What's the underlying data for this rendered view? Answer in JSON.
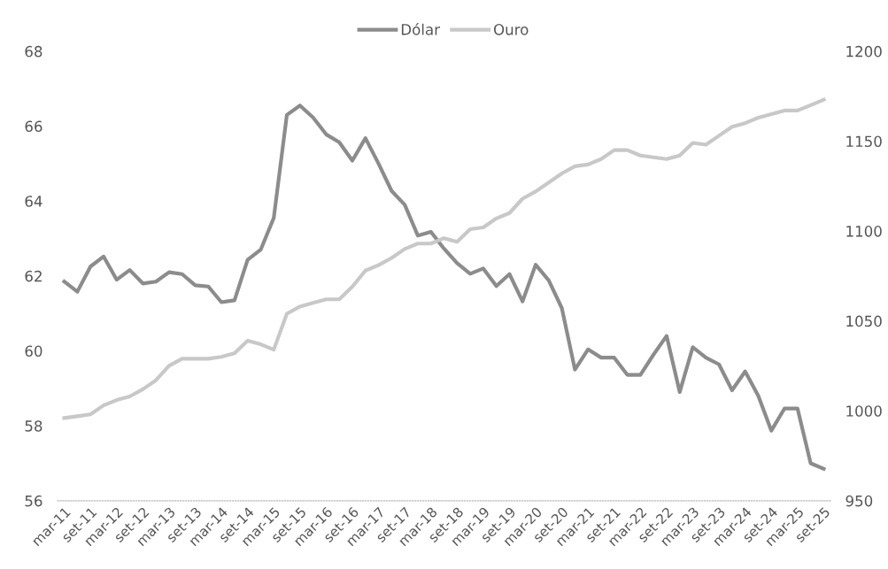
{
  "chart_data": {
    "type": "line",
    "categories": [
      "mar-11",
      null,
      "set-11",
      null,
      "mar-12",
      null,
      "set-12",
      null,
      "mar-13",
      null,
      "set-13",
      null,
      "mar-14",
      null,
      "set-14",
      null,
      "mar-15",
      null,
      "set-15",
      null,
      "mar-16",
      null,
      "set-16",
      null,
      "mar-17",
      null,
      "set-17",
      null,
      "mar-18",
      null,
      "set-18",
      null,
      "mar-19",
      null,
      "set-19",
      null,
      "mar-20",
      null,
      "set-20",
      null,
      "mar-21",
      null,
      "set-21",
      null,
      "mar-22",
      null,
      "set-22",
      null,
      "mar-23",
      null,
      "set-23",
      null,
      "mar-24",
      null,
      "set-24",
      null,
      "mar-25",
      null,
      "set-25"
    ],
    "series": [
      {
        "name": "Dólar",
        "color": "#8c8c8c",
        "values": [
          61.85,
          61.58,
          62.25,
          62.52,
          61.9,
          62.16,
          61.8,
          61.85,
          62.1,
          62.05,
          61.75,
          61.72,
          61.3,
          61.35,
          62.43,
          62.7,
          63.55,
          66.3,
          66.55,
          66.23,
          65.78,
          65.57,
          65.08,
          65.68,
          65.0,
          64.27,
          63.9,
          63.08,
          63.18,
          62.73,
          62.34,
          62.06,
          62.2,
          61.73,
          62.05,
          61.32,
          62.3,
          61.88,
          61.14,
          59.5,
          60.04,
          59.82,
          59.82,
          59.36,
          59.36,
          59.9,
          60.4,
          58.9,
          60.1,
          59.82,
          59.64,
          58.95,
          59.45,
          58.8,
          57.87,
          58.46,
          58.46,
          57.0,
          56.85
        ]
      },
      {
        "name": "Ouro",
        "color": "#c8c8c8",
        "axis": "y2",
        "values": [
          996,
          997,
          998,
          1003,
          1006,
          1008,
          1012,
          1017,
          1025,
          1029,
          1029,
          1029,
          1030,
          1032,
          1039,
          1037,
          1034,
          1054,
          1058,
          1060,
          1062,
          1062,
          1069,
          1078,
          1081,
          1085,
          1090,
          1093,
          1093,
          1096,
          1094,
          1101,
          1102,
          1107,
          1110,
          1118,
          1122,
          1127,
          1132,
          1136,
          1137,
          1140,
          1145,
          1145,
          1142,
          1141,
          1140,
          1142,
          1149,
          1148,
          1153,
          1158,
          1160,
          1163,
          1165,
          1167,
          1167,
          1170,
          1173
        ]
      }
    ],
    "ylim": [
      56,
      68
    ],
    "yticks": [
      56,
      58,
      60,
      62,
      64,
      66,
      68
    ],
    "y2lim": [
      950,
      1200
    ],
    "y2ticks": [
      950,
      1000,
      1050,
      1100,
      1150,
      1200
    ],
    "legend": "top",
    "grid": false
  }
}
